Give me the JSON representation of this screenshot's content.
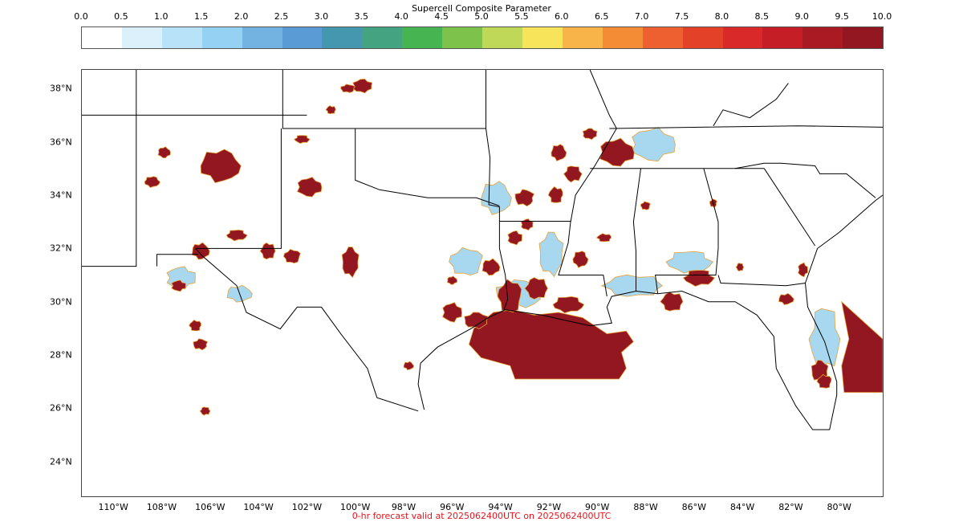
{
  "colorbar": {
    "title": "Supercell Composite Parameter",
    "ticks": [
      "0.0",
      "0.5",
      "1.0",
      "1.5",
      "2.0",
      "2.5",
      "3.0",
      "3.5",
      "4.0",
      "4.5",
      "5.0",
      "5.5",
      "6.0",
      "6.5",
      "7.0",
      "7.5",
      "8.0",
      "8.5",
      "9.0",
      "9.5",
      "10.0"
    ],
    "colors": [
      "#ffffff",
      "#dcf0fb",
      "#b8e2f7",
      "#94d1f3",
      "#72b3e2",
      "#5a9bd5",
      "#4597b0",
      "#44a482",
      "#46b450",
      "#7dc24a",
      "#c0d858",
      "#f8e45a",
      "#f8b448",
      "#f48c36",
      "#ee6030",
      "#e44228",
      "#d92a29",
      "#c51e26",
      "#aa1a22",
      "#921720"
    ]
  },
  "map": {
    "lat_labels": [
      {
        "text": "38°N",
        "lat": 38
      },
      {
        "text": "36°N",
        "lat": 36
      },
      {
        "text": "34°N",
        "lat": 34
      },
      {
        "text": "32°N",
        "lat": 32
      },
      {
        "text": "30°N",
        "lat": 30
      },
      {
        "text": "28°N",
        "lat": 28
      },
      {
        "text": "26°N",
        "lat": 26
      },
      {
        "text": "24°N",
        "lat": 24
      }
    ],
    "lon_labels": [
      {
        "text": "110°W",
        "lon": -110
      },
      {
        "text": "108°W",
        "lon": -108
      },
      {
        "text": "106°W",
        "lon": -106
      },
      {
        "text": "104°W",
        "lon": -104
      },
      {
        "text": "102°W",
        "lon": -102
      },
      {
        "text": "100°W",
        "lon": -100
      },
      {
        "text": "98°W",
        "lon": -98
      },
      {
        "text": "96°W",
        "lon": -96
      },
      {
        "text": "94°W",
        "lon": -94
      },
      {
        "text": "92°W",
        "lon": -92
      },
      {
        "text": "90°W",
        "lon": -90
      },
      {
        "text": "88°W",
        "lon": -88
      },
      {
        "text": "86°W",
        "lon": -86
      },
      {
        "text": "84°W",
        "lon": -84
      },
      {
        "text": "82°W",
        "lon": -82
      },
      {
        "text": "80°W",
        "lon": -80
      }
    ],
    "extent": {
      "lon_min": -111.3,
      "lon_max": -78.2,
      "lat_min": 22.7,
      "lat_max": 38.7
    },
    "high_color": "#921720",
    "low_color": "#a8d8ef",
    "border_color": "#000000"
  },
  "footer": "0-hr forecast valid at 2025062400UTC on 2025062400UTC"
}
